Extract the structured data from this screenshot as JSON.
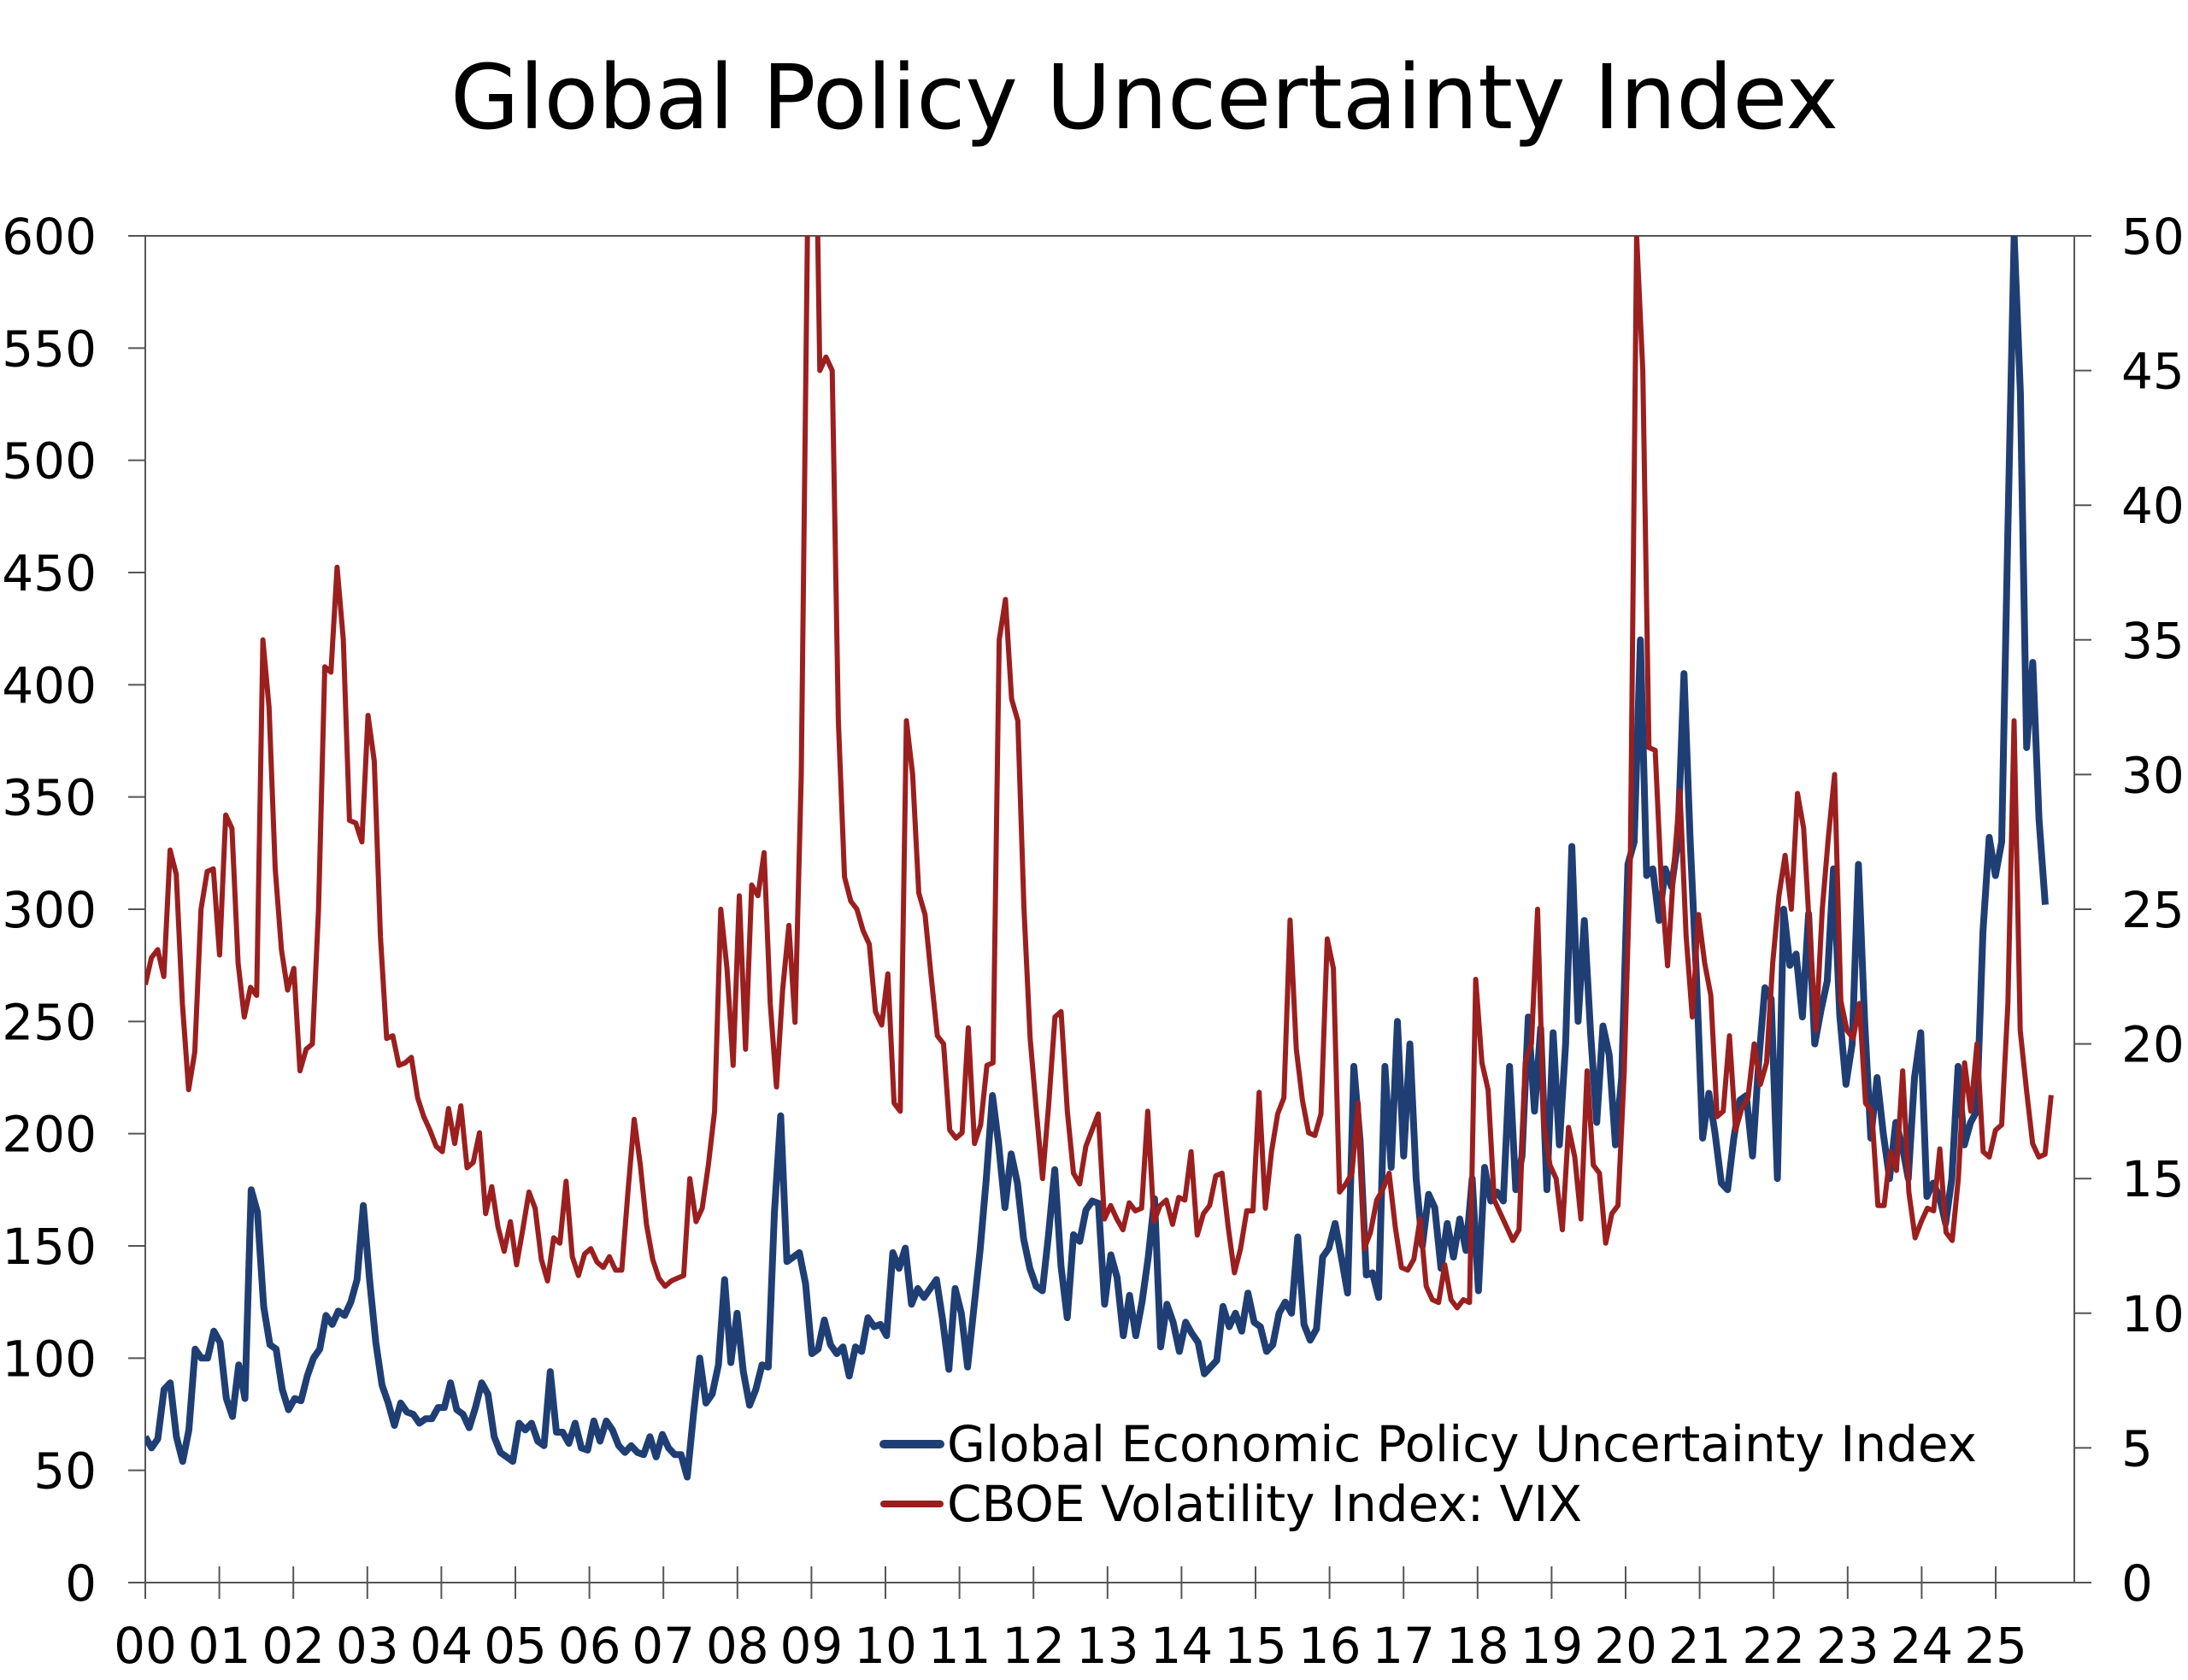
{
  "chart_data": {
    "type": "line",
    "title": "Global Policy Uncertainty Index",
    "xlabel": "",
    "ylabel_left": "",
    "ylabel_right": "",
    "xlim": [
      2000,
      2026.4
    ],
    "ylim_left": [
      0,
      600
    ],
    "ylim_right": [
      0,
      50
    ],
    "grid": false,
    "legend_position": "bottom-right",
    "x_tick_labels": [
      "00",
      "01",
      "02",
      "03",
      "04",
      "05",
      "06",
      "07",
      "08",
      "09",
      "10",
      "11",
      "12",
      "13",
      "14",
      "15",
      "16",
      "17",
      "18",
      "19",
      "20",
      "21",
      "22",
      "23",
      "24",
      "25"
    ],
    "y_left_tick_labels": [
      "0",
      "50",
      "100",
      "150",
      "200",
      "250",
      "300",
      "350",
      "400",
      "450",
      "500",
      "550",
      "600"
    ],
    "y_right_tick_labels": [
      "0",
      "5",
      "10",
      "15",
      "20",
      "25",
      "30",
      "35",
      "40",
      "45",
      "50"
    ],
    "series": [
      {
        "name": "Global Economic Policy Uncertainty Index",
        "axis": "left",
        "color": "#1f3e74",
        "x_start": 2000.0,
        "x_end": 2025.67,
        "sampling": "approximately monthly, evenly spaced",
        "values": [
          65,
          60,
          64,
          86,
          89,
          65,
          54,
          68,
          104,
          100,
          100,
          112,
          107,
          82,
          74,
          97,
          82,
          175,
          165,
          123,
          106,
          104,
          86,
          77,
          82,
          81,
          92,
          100,
          104,
          119,
          115,
          121,
          119,
          125,
          135,
          168,
          135,
          107,
          88,
          80,
          70,
          80,
          76,
          75,
          71,
          73,
          73,
          78,
          78,
          89,
          77,
          75,
          69,
          78,
          89,
          84,
          65,
          58,
          56,
          54,
          71,
          68,
          71,
          63,
          61,
          94,
          67,
          67,
          62,
          71,
          60,
          59,
          72,
          63,
          72,
          68,
          61,
          58,
          61,
          58,
          57,
          65,
          56,
          66,
          60,
          57,
          57,
          47,
          75,
          100,
          80,
          84,
          97,
          135,
          98,
          120,
          94,
          79,
          86,
          97,
          96,
          165,
          208,
          143,
          145,
          147,
          133,
          102,
          104,
          117,
          106,
          102,
          105,
          92,
          105,
          103,
          118,
          114,
          115,
          110,
          147,
          140,
          149,
          124,
          131,
          127,
          131,
          135,
          117,
          95,
          131,
          120,
          96,
          122,
          148,
          180,
          217,
          195,
          167,
          191,
          178,
          153,
          140,
          132,
          130,
          155,
          184,
          141,
          118,
          155,
          152,
          166,
          170,
          169,
          124,
          146,
          136,
          110,
          128,
          110,
          125,
          145,
          171,
          105,
          124,
          116,
          103,
          116,
          111,
          107,
          93,
          96,
          99,
          123,
          114,
          120,
          112,
          129,
          116,
          114,
          103,
          106,
          120,
          125,
          120,
          154,
          115,
          108,
          113,
          145,
          149,
          160,
          145,
          129,
          230,
          197,
          137,
          138,
          127,
          230,
          185,
          250,
          190,
          240,
          180,
          150,
          173,
          167,
          140,
          160,
          145,
          162,
          148,
          180,
          130,
          185,
          170,
          174,
          170,
          230,
          175,
          190,
          252,
          210,
          247,
          175,
          245,
          195,
          240,
          328,
          250,
          295,
          245,
          205,
          248,
          235,
          195,
          225,
          320,
          330,
          420,
          315,
          318,
          295,
          318,
          310,
          330,
          405,
          330,
          270,
          198,
          218,
          200,
          178,
          175,
          198,
          215,
          217,
          190,
          232,
          265,
          260,
          180,
          300,
          275,
          280,
          252,
          298,
          240,
          255,
          268,
          318,
          253,
          222,
          240,
          320,
          250,
          198,
          225,
          200,
          180,
          205,
          195,
          180,
          225,
          245,
          172,
          178,
          172,
          160,
          180,
          230,
          195,
          205,
          210,
          290,
          332,
          315,
          330,
          470,
          600,
          530,
          372,
          410,
          340,
          302
        ]
      },
      {
        "name": "CBOE Volatility Index: VIX",
        "axis": "right",
        "color": "#9b1f1f",
        "x_start": 2000.0,
        "x_end": 2025.75,
        "sampling": "approximately monthly, evenly spaced",
        "values": [
          22.2,
          23.2,
          23.5,
          22.5,
          27.2,
          26.3,
          21.5,
          18.3,
          19.7,
          25,
          26.4,
          26.5,
          23.3,
          28.5,
          28,
          23,
          21,
          22.1,
          21.8,
          35,
          32.5,
          26.5,
          23.5,
          22,
          22.8,
          19,
          19.8,
          20,
          25,
          34,
          33.8,
          37.7,
          35,
          28.3,
          28.2,
          27.5,
          32.2,
          30.5,
          24,
          20.2,
          20.3,
          19.2,
          19.3,
          19.5,
          18,
          17.3,
          16.8,
          16.2,
          16,
          17.6,
          16.3,
          17.7,
          15.4,
          15.6,
          16.7,
          13.7,
          14.7,
          13.2,
          12.3,
          13.4,
          11.8,
          13.1,
          14.5,
          13.9,
          12,
          11.2,
          12.8,
          12.6,
          14.9,
          12.1,
          11.4,
          12.2,
          12.4,
          11.9,
          11.7,
          12.1,
          11.6,
          11.6,
          14.5,
          17.2,
          15.5,
          13.3,
          12,
          11.3,
          11,
          11.2,
          11.3,
          11.4,
          15,
          13.4,
          13.9,
          15.5,
          17.5,
          25,
          22.8,
          19.2,
          25.5,
          19.8,
          25.9,
          25.5,
          27.1,
          21.5,
          18.4,
          22,
          24.4,
          20.8,
          30,
          50,
          60,
          45,
          45.5,
          45,
          32,
          26.2,
          25.3,
          25,
          24.2,
          23.7,
          21.2,
          20.7,
          22.6,
          17.8,
          17.5,
          32,
          30,
          25.6,
          24.8,
          22.5,
          20.3,
          20,
          16.8,
          16.5,
          16.7,
          20.6,
          16.3,
          17,
          19.2,
          19.3,
          35,
          36.5,
          32.8,
          32,
          25,
          20.2,
          17.5,
          15,
          17.8,
          21,
          21.2,
          17.5,
          15.2,
          14.8,
          16.2,
          16.8,
          17.4,
          13.5,
          14,
          13.5,
          13.1,
          14.1,
          13.8,
          13.9,
          17.5,
          13.4,
          14,
          14.2,
          13.3,
          14.3,
          14.2,
          16,
          12.9,
          13.7,
          14,
          15.1,
          15.2,
          13.2,
          11.5,
          12.4,
          13.8,
          13.8,
          18.2,
          13.9,
          16,
          17.4,
          18,
          24.6,
          19.8,
          17.9,
          16.7,
          16.6,
          17.4,
          23.9,
          22.8,
          14.5,
          14.8,
          15.2,
          17.8,
          12.4,
          13,
          14.2,
          14.6,
          15.2,
          13.2,
          11.7,
          11.6,
          12,
          13.5,
          11,
          10.5,
          10.4,
          11.8,
          10.5,
          10.2,
          10.5,
          10.4,
          22.4,
          19.3,
          18.3,
          14.2,
          13.7,
          13.2,
          12.7,
          13.1,
          19.3,
          20,
          25,
          17,
          15.5,
          15,
          13.1,
          16.9,
          15.8,
          13.5,
          19,
          15.5,
          15.2,
          12.6,
          13.7,
          14,
          19,
          27,
          50,
          45,
          31,
          30.9,
          26,
          22.9,
          26.5,
          29.4,
          24,
          21,
          24.8,
          23,
          21.8,
          17.3,
          17.5,
          20.3,
          16.8,
          17.6,
          18,
          20,
          18.5,
          19.3,
          23,
          25.5,
          27,
          25,
          29.3,
          28,
          24,
          20.5,
          25,
          27.7,
          30,
          21.6,
          20.5,
          20.2,
          21.5,
          17.8,
          17.5,
          14,
          14,
          16,
          15.3,
          19,
          14.5,
          12.8,
          13.4,
          13.9,
          13.8,
          16.1,
          13,
          12.7,
          15,
          19.3,
          17.5,
          20,
          16,
          15.8,
          16.8,
          17,
          21.5,
          32,
          20.5,
          18.3,
          16.3,
          15.8,
          15.9,
          18.1
        ]
      }
    ]
  }
}
